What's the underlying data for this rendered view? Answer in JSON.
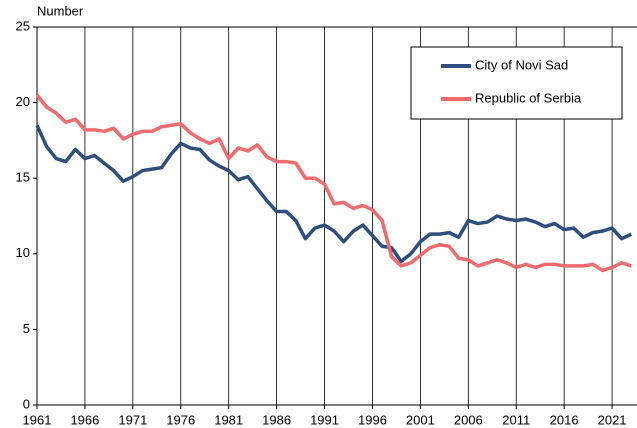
{
  "chart_data": {
    "type": "line",
    "y_label": "Number",
    "x": [
      1961,
      1962,
      1963,
      1964,
      1965,
      1966,
      1967,
      1968,
      1969,
      1970,
      1971,
      1972,
      1973,
      1974,
      1975,
      1976,
      1977,
      1978,
      1979,
      1980,
      1981,
      1982,
      1983,
      1984,
      1985,
      1986,
      1987,
      1988,
      1989,
      1990,
      1991,
      1992,
      1993,
      1994,
      1995,
      1996,
      1997,
      1998,
      1999,
      2000,
      2001,
      2002,
      2003,
      2004,
      2005,
      2006,
      2007,
      2008,
      2009,
      2010,
      2011,
      2012,
      2013,
      2014,
      2015,
      2016,
      2017,
      2018,
      2019,
      2020,
      2021,
      2022,
      2023
    ],
    "series": [
      {
        "name": "City of Novi Sad",
        "color": "#2e4e7e",
        "values": [
          18.5,
          17.1,
          16.3,
          16.1,
          16.9,
          16.3,
          16.5,
          16.0,
          15.5,
          14.8,
          15.1,
          15.5,
          15.6,
          15.7,
          16.6,
          17.3,
          17.0,
          16.9,
          16.2,
          15.8,
          15.5,
          14.9,
          15.1,
          14.3,
          13.5,
          12.8,
          12.8,
          12.2,
          11.0,
          11.7,
          11.9,
          11.5,
          10.8,
          11.5,
          11.9,
          11.2,
          10.5,
          10.4,
          9.5,
          10.0,
          10.8,
          11.3,
          11.3,
          11.4,
          11.1,
          12.2,
          12.0,
          12.1,
          12.5,
          12.3,
          12.2,
          12.3,
          12.1,
          11.8,
          12.0,
          11.6,
          11.7,
          11.1,
          11.4,
          11.5,
          11.7,
          11.0,
          11.3
        ]
      },
      {
        "name": "Republic of Serbia",
        "color": "#f06a6e",
        "values": [
          20.5,
          19.7,
          19.3,
          18.7,
          18.9,
          18.2,
          18.2,
          18.1,
          18.3,
          17.6,
          17.9,
          18.1,
          18.1,
          18.4,
          18.5,
          18.6,
          18.0,
          17.6,
          17.3,
          17.6,
          16.3,
          17.0,
          16.8,
          17.2,
          16.4,
          16.1,
          16.1,
          16.0,
          15.0,
          15.0,
          14.6,
          13.3,
          13.4,
          13.0,
          13.2,
          12.9,
          12.2,
          9.8,
          9.2,
          9.4,
          9.9,
          10.4,
          10.6,
          10.5,
          9.7,
          9.6,
          9.2,
          9.4,
          9.6,
          9.4,
          9.1,
          9.3,
          9.1,
          9.3,
          9.3,
          9.2,
          9.2,
          9.2,
          9.3,
          8.9,
          9.1,
          9.4,
          9.2
        ]
      }
    ],
    "xlim": [
      1961,
      2023.6
    ],
    "xticks": [
      1961,
      1966,
      1971,
      1976,
      1981,
      1986,
      1991,
      1996,
      2001,
      2006,
      2011,
      2016,
      2021
    ],
    "ylim": [
      0,
      25
    ],
    "yticks": [
      0,
      5,
      10,
      15,
      20,
      25
    ],
    "grid": "x"
  }
}
